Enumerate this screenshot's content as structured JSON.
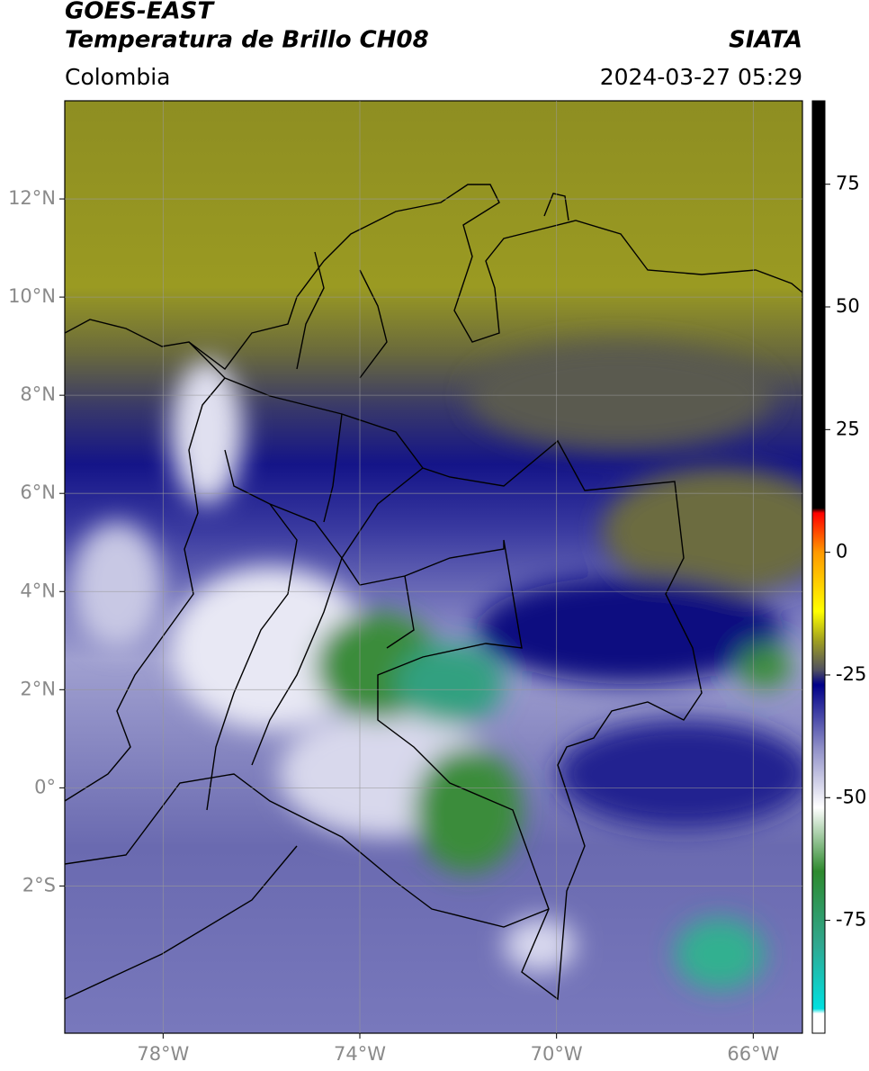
{
  "header": {
    "title": "GOES-EAST",
    "subtitle": "Temperatura de Brillo CH08",
    "source": "SIATA",
    "region": "Colombia",
    "datetime": "2024-03-27 05:29"
  },
  "map": {
    "xlim": [
      -80,
      -65
    ],
    "ylim": [
      -5,
      14
    ],
    "grid": true,
    "xticks": [
      {
        "value": -78,
        "label": "78°W"
      },
      {
        "value": -74,
        "label": "74°W"
      },
      {
        "value": -70,
        "label": "70°W"
      },
      {
        "value": -66,
        "label": "66°W"
      }
    ],
    "yticks": [
      {
        "value": 12,
        "label": "12°N"
      },
      {
        "value": 10,
        "label": "10°N"
      },
      {
        "value": 8,
        "label": "8°N"
      },
      {
        "value": 6,
        "label": "6°N"
      },
      {
        "value": 4,
        "label": "4°N"
      },
      {
        "value": 2,
        "label": "2°N"
      },
      {
        "value": 0,
        "label": "0°"
      },
      {
        "value": -2,
        "label": "2°S"
      }
    ]
  },
  "colorbar": {
    "clim": [
      -98,
      92
    ],
    "ticks": [
      75,
      50,
      25,
      0,
      -25,
      -50,
      -75
    ],
    "colormap": [
      {
        "value": -98,
        "color": "#ffffff"
      },
      {
        "value": -94,
        "color": "#ffffff"
      },
      {
        "value": -93,
        "color": "#00e0e0"
      },
      {
        "value": -80,
        "color": "#30a890"
      },
      {
        "value": -65,
        "color": "#2e8a2e"
      },
      {
        "value": -52,
        "color": "#ffffff"
      },
      {
        "value": -40,
        "color": "#9090c8"
      },
      {
        "value": -27,
        "color": "#000088"
      },
      {
        "value": -24,
        "color": "#505060"
      },
      {
        "value": -18,
        "color": "#a0a020"
      },
      {
        "value": -12,
        "color": "#ffff00"
      },
      {
        "value": 0,
        "color": "#ff9900"
      },
      {
        "value": 8,
        "color": "#ff0000"
      },
      {
        "value": 9,
        "color": "#000000"
      },
      {
        "value": 92,
        "color": "#000000"
      }
    ]
  }
}
